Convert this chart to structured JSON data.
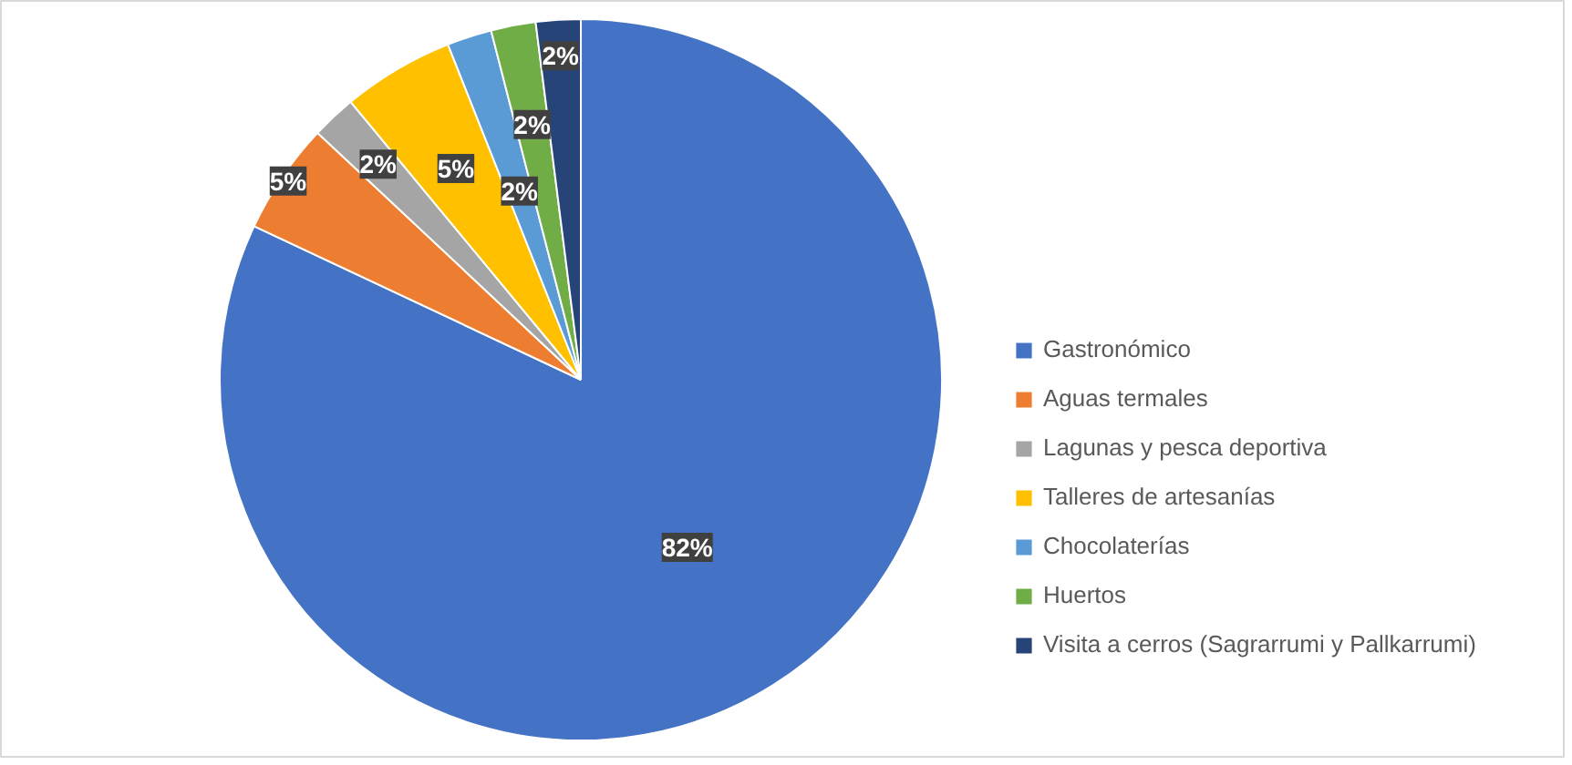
{
  "chart_data": {
    "type": "pie",
    "categories": [
      "Gastronómico",
      "Aguas termales",
      "Lagunas y pesca deportiva",
      "Talleres de artesanías",
      "Chocolaterías",
      "Huertos",
      "Visita a cerros (Sagrarrumi y Pallkarrumi)"
    ],
    "values": [
      82,
      5,
      2,
      5,
      2,
      2,
      2
    ],
    "colors": [
      "#4472c4",
      "#ed7d31",
      "#a5a5a5",
      "#ffc000",
      "#5b9bd5",
      "#70ad47",
      "#264478"
    ],
    "value_labels": [
      "82%",
      "5%",
      "2%",
      "5%",
      "2%",
      "2%",
      "2%"
    ],
    "legend": "right"
  }
}
